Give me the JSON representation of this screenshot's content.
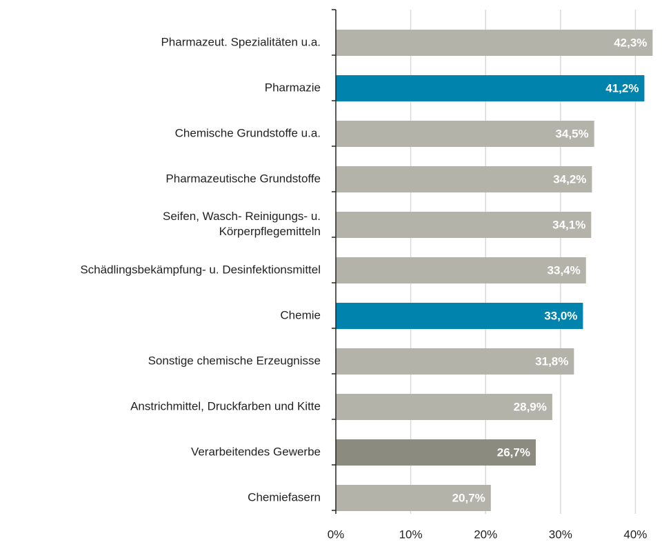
{
  "chart_data": {
    "type": "bar",
    "orientation": "horizontal",
    "categories": [
      "Pharmazeut. Spezialitäten u.a.",
      "Pharmazie",
      "Chemische Grundstoffe u.a.",
      "Pharmazeutische Grundstoffe",
      "Seifen, Wasch- Reinigungs- u.\nKörperpflegemitteln",
      "Schädlingsbekämpfung- u. Desinfektionsmittel",
      "Chemie",
      "Sonstige chemische Erzeugnisse",
      "Anstrichmittel, Druckfarben und Kitte",
      "Verarbeitendes Gewerbe",
      "Chemiefasern"
    ],
    "values": [
      42.3,
      41.2,
      34.5,
      34.2,
      34.1,
      33.4,
      33.0,
      31.8,
      28.9,
      26.7,
      20.7
    ],
    "value_labels": [
      "42,3%",
      "41,2%",
      "34,5%",
      "34,2%",
      "34,1%",
      "33,4%",
      "33,0%",
      "31,8%",
      "28,9%",
      "26,7%",
      "20,7%"
    ],
    "colors": [
      "#b3b3a9",
      "#0083ad",
      "#b3b3a9",
      "#b3b3a9",
      "#b3b3a9",
      "#b3b3a9",
      "#0083ad",
      "#b3b3a9",
      "#b3b3a9",
      "#8c8b80",
      "#b3b3a9"
    ],
    "xlim": [
      0,
      43
    ],
    "xticks": [
      {
        "value": 0,
        "label": "0%"
      },
      {
        "value": 10,
        "label": "10%"
      },
      {
        "value": 20,
        "label": "20%"
      },
      {
        "value": 30,
        "label": "30%"
      },
      {
        "value": 40,
        "label": "40%"
      }
    ],
    "grid": true
  }
}
